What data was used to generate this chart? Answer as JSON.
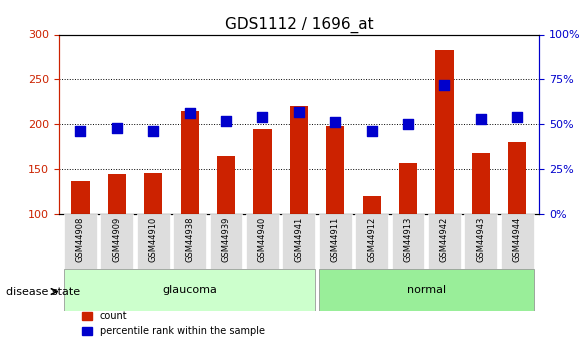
{
  "title": "GDS1112 / 1696_at",
  "samples": [
    "GSM44908",
    "GSM44909",
    "GSM44910",
    "GSM44938",
    "GSM44939",
    "GSM44940",
    "GSM44941",
    "GSM44911",
    "GSM44912",
    "GSM44913",
    "GSM44942",
    "GSM44943",
    "GSM44944"
  ],
  "counts": [
    137,
    144,
    146,
    215,
    165,
    195,
    220,
    198,
    120,
    157,
    283,
    168,
    180
  ],
  "percentiles": [
    46,
    48,
    46,
    56,
    52,
    54,
    57,
    51,
    46,
    50,
    72,
    53,
    54
  ],
  "groups": [
    "glaucoma",
    "glaucoma",
    "glaucoma",
    "glaucoma",
    "glaucoma",
    "glaucoma",
    "glaucoma",
    "normal",
    "normal",
    "normal",
    "normal",
    "normal",
    "normal"
  ],
  "ylim_left": [
    100,
    300
  ],
  "ylim_right": [
    0,
    100
  ],
  "yticks_left": [
    100,
    150,
    200,
    250,
    300
  ],
  "yticks_right": [
    0,
    25,
    50,
    75,
    100
  ],
  "bar_color": "#CC2200",
  "dot_color": "#0000CC",
  "glaucoma_color": "#CCFFCC",
  "normal_color": "#99EE99",
  "label_bg_color": "#DDDDDD",
  "bar_bottom": 100,
  "bar_width": 0.5,
  "dot_size": 60,
  "right_axis_label_suffix": "%"
}
